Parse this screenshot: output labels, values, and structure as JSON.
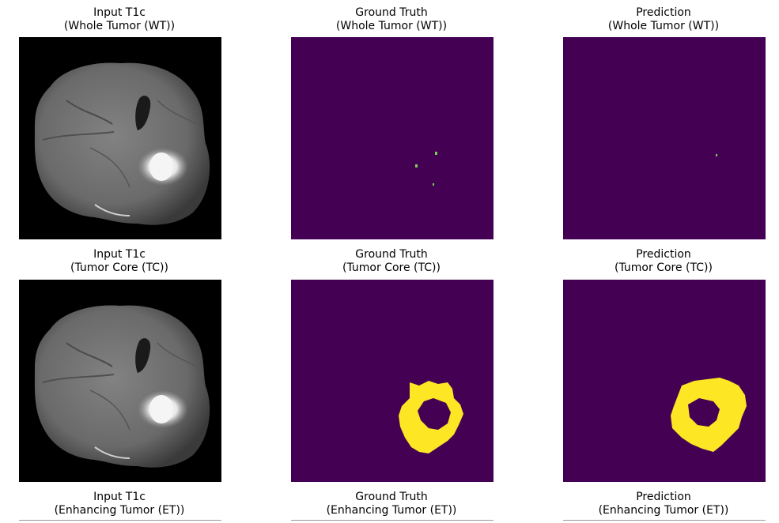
{
  "figure": {
    "rows": [
      {
        "mask": "Whole Tumor (WT)",
        "panels": [
          {
            "heading": "Input T1c",
            "subheading": "(Whole Tumor (WT))"
          },
          {
            "heading": "Ground Truth",
            "subheading": "(Whole Tumor (WT))"
          },
          {
            "heading": "Prediction",
            "subheading": "(Whole Tumor (WT))"
          }
        ]
      },
      {
        "mask": "Tumor Core (TC)",
        "panels": [
          {
            "heading": "Input T1c",
            "subheading": "(Tumor Core (TC))"
          },
          {
            "heading": "Ground Truth",
            "subheading": "(Tumor Core (TC))"
          },
          {
            "heading": "Prediction",
            "subheading": "(Tumor Core (TC))"
          }
        ]
      },
      {
        "mask": "Enhancing Tumor (ET)",
        "panels": [
          {
            "heading": "Input T1c",
            "subheading": "(Enhancing Tumor (ET))"
          },
          {
            "heading": "Ground Truth",
            "subheading": "(Enhancing Tumor (ET))"
          },
          {
            "heading": "Prediction",
            "subheading": "(Enhancing Tumor (ET))"
          }
        ]
      }
    ],
    "colors": {
      "mask_background": "#440154",
      "mask_foreground": "#fde725",
      "small_spots": "#7ad151",
      "mri_background": "#000000",
      "brain_gray": "#6e6e6e",
      "tumor_bright": "#f0f0f0"
    }
  }
}
